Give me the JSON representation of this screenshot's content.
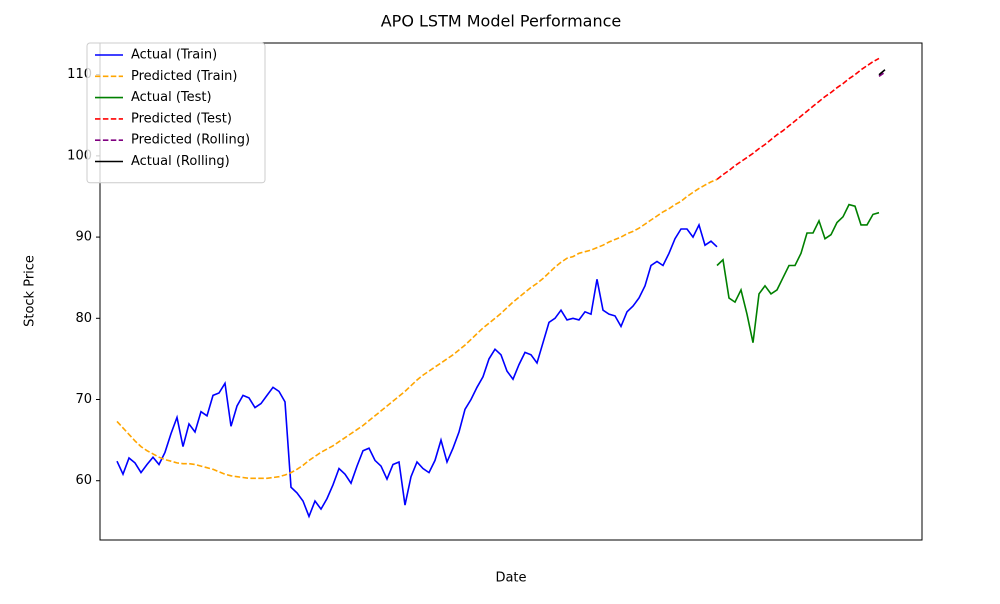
{
  "chart_data": {
    "type": "line",
    "title": "APO LSTM Model Performance",
    "x_label": "Date",
    "y_label": "Stock Price",
    "xlim": [
      -2.83,
      134.17
    ],
    "ylim": [
      52.7,
      113.9
    ],
    "yticks": [
      60,
      70,
      80,
      90,
      100,
      110
    ],
    "legend": "upper left",
    "series": [
      {
        "name": "Actual (Train)",
        "color": "blue",
        "style": "solid",
        "x": [
          0,
          1,
          2,
          3,
          4,
          5,
          6,
          7,
          8,
          9,
          10,
          11,
          12,
          13,
          14,
          15,
          16,
          17,
          18,
          19,
          20,
          21,
          22,
          23,
          24,
          25,
          26,
          27,
          28,
          29,
          30,
          31,
          32,
          33,
          34,
          35,
          36,
          37,
          38,
          39,
          40,
          41,
          42,
          43,
          44,
          45,
          46,
          47,
          48,
          49,
          50,
          51,
          52,
          53,
          54,
          55,
          56,
          57,
          58,
          59,
          60,
          61,
          62,
          63,
          64,
          65,
          66,
          67,
          68,
          69,
          70,
          71,
          72,
          73,
          74,
          75,
          76,
          77,
          78,
          79,
          80,
          81,
          82,
          83,
          84,
          85,
          86,
          87,
          88,
          89,
          90,
          91,
          92,
          93,
          94,
          95,
          96,
          97,
          98,
          99,
          100
        ],
        "values": [
          62.4,
          60.8,
          62.8,
          62.2,
          61.0,
          62.0,
          62.9,
          62.0,
          63.5,
          65.8,
          67.8,
          64.2,
          67.0,
          66.0,
          68.5,
          68.0,
          70.5,
          70.8,
          72.0,
          66.7,
          69.2,
          70.5,
          70.2,
          69.0,
          69.5,
          70.5,
          71.5,
          71.0,
          69.7,
          59.2,
          58.5,
          57.5,
          55.6,
          57.5,
          56.5,
          57.8,
          59.5,
          61.5,
          60.8,
          59.7,
          61.8,
          63.7,
          64.0,
          62.5,
          61.8,
          60.2,
          62.0,
          62.3,
          57.0,
          60.5,
          62.3,
          61.5,
          61.0,
          62.5,
          65.0,
          62.3,
          64.0,
          66.0,
          68.8,
          70.0,
          71.5,
          72.8,
          75.0,
          76.2,
          75.5,
          73.5,
          72.5,
          74.3,
          75.8,
          75.5,
          74.5,
          77.0,
          79.5,
          80.0,
          81.0,
          79.8,
          80.0,
          79.8,
          80.8,
          80.5,
          84.8,
          81.0,
          80.5,
          80.3,
          79.0,
          80.8,
          81.5,
          82.5,
          84.0,
          86.5,
          87.0,
          86.5,
          88.0,
          89.8,
          91.0,
          91.0,
          90.0,
          91.5,
          89.0,
          89.5,
          88.8
        ]
      },
      {
        "name": "Predicted (Train)",
        "color": "orange",
        "style": "dashed",
        "x": [
          0,
          1,
          2,
          3,
          4,
          5,
          6,
          7,
          8,
          9,
          10,
          11,
          12,
          13,
          14,
          15,
          16,
          17,
          18,
          19,
          20,
          21,
          22,
          23,
          24,
          25,
          26,
          27,
          28,
          29,
          30,
          31,
          32,
          33,
          34,
          35,
          36,
          37,
          38,
          39,
          40,
          41,
          42,
          43,
          44,
          45,
          46,
          47,
          48,
          49,
          50,
          51,
          52,
          53,
          54,
          55,
          56,
          57,
          58,
          59,
          60,
          61,
          62,
          63,
          64,
          65,
          66,
          67,
          68,
          69,
          70,
          71,
          72,
          73,
          74,
          75,
          76,
          77,
          78,
          79,
          80,
          81,
          82,
          83,
          84,
          85,
          86,
          87,
          88,
          89,
          90,
          91,
          92,
          93,
          94,
          95,
          96,
          97,
          98,
          99,
          100
        ],
        "values": [
          67.3,
          66.5,
          65.7,
          64.9,
          64.2,
          63.7,
          63.3,
          62.9,
          62.6,
          62.4,
          62.2,
          62.1,
          62.1,
          62.0,
          61.8,
          61.6,
          61.4,
          61.1,
          60.8,
          60.6,
          60.5,
          60.4,
          60.3,
          60.3,
          60.3,
          60.3,
          60.4,
          60.5,
          60.7,
          61.0,
          61.4,
          61.9,
          62.5,
          63.0,
          63.5,
          63.9,
          64.3,
          64.8,
          65.3,
          65.8,
          66.3,
          66.8,
          67.4,
          68.0,
          68.6,
          69.2,
          69.8,
          70.4,
          71.0,
          71.7,
          72.4,
          73.0,
          73.5,
          74.0,
          74.5,
          75.0,
          75.5,
          76.1,
          76.7,
          77.4,
          78.1,
          78.8,
          79.4,
          80.0,
          80.6,
          81.3,
          82.0,
          82.6,
          83.2,
          83.8,
          84.3,
          84.9,
          85.6,
          86.3,
          86.9,
          87.4,
          87.6,
          88.0,
          88.2,
          88.4,
          88.7,
          89.0,
          89.4,
          89.7,
          90.0,
          90.4,
          90.7,
          91.1,
          91.6,
          92.1,
          92.6,
          93.1,
          93.5,
          94.0,
          94.4,
          95.0,
          95.5,
          96.0,
          96.4,
          96.8,
          97.1
        ]
      },
      {
        "name": "Actual (Test)",
        "color": "green",
        "style": "solid",
        "x": [
          100,
          101,
          102,
          103,
          104,
          105,
          106,
          107,
          108,
          109,
          110,
          111,
          112,
          113,
          114,
          115,
          116,
          117,
          118,
          119,
          120,
          121,
          122,
          123,
          124,
          125,
          126,
          127
        ],
        "values": [
          86.5,
          87.2,
          82.5,
          82.0,
          83.5,
          80.5,
          77.0,
          83.0,
          84.0,
          83.0,
          83.5,
          85.0,
          86.5,
          86.5,
          88.0,
          90.5,
          90.5,
          92.0,
          89.8,
          90.3,
          91.8,
          92.5,
          94.0,
          93.8,
          91.5,
          91.5,
          92.8,
          93.0
        ]
      },
      {
        "name": "Predicted (Test)",
        "color": "red",
        "style": "dashed",
        "x": [
          100,
          101,
          102,
          103,
          104,
          105,
          106,
          107,
          108,
          109,
          110,
          111,
          112,
          113,
          114,
          115,
          116,
          117,
          118,
          119,
          120,
          121,
          122,
          123,
          124,
          125,
          126,
          127
        ],
        "values": [
          97.1,
          97.7,
          98.2,
          98.8,
          99.3,
          99.8,
          100.3,
          100.9,
          101.4,
          102.0,
          102.6,
          103.1,
          103.7,
          104.3,
          104.9,
          105.5,
          106.1,
          106.7,
          107.3,
          107.8,
          108.4,
          108.9,
          109.5,
          110.0,
          110.6,
          111.1,
          111.6,
          112.0
        ]
      },
      {
        "name": "Predicted (Rolling)",
        "color": "purple",
        "style": "dashed",
        "x": [
          127,
          128
        ],
        "values": [
          109.8,
          110.3
        ]
      },
      {
        "name": "Actual (Rolling)",
        "color": "black",
        "style": "solid",
        "x": [
          127,
          128
        ],
        "values": [
          110.0,
          110.6
        ]
      }
    ]
  }
}
